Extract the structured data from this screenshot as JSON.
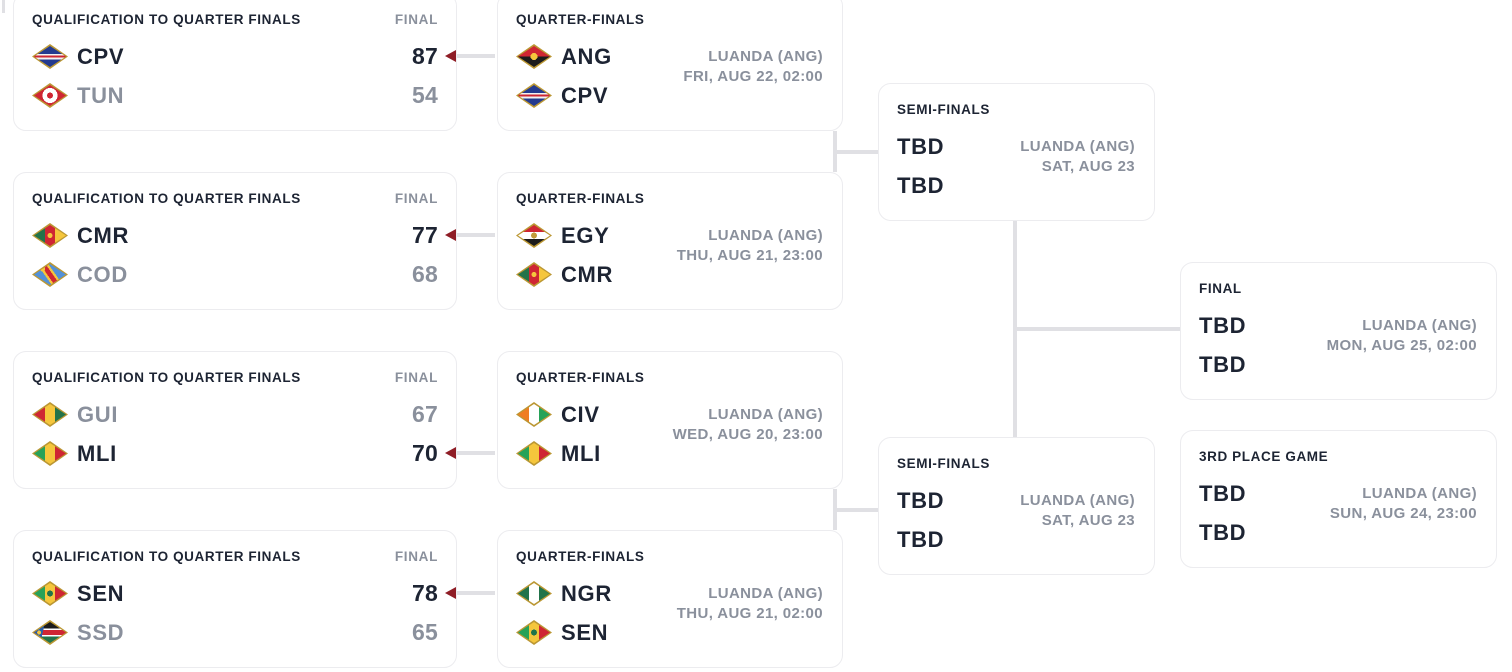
{
  "colors": {
    "text_dark": "#1d2433",
    "text_gray": "#8a909c",
    "winner_arrow": "#8f1d26",
    "connector_line": "#e0e0e4",
    "card_border": "#ececef"
  },
  "bracket": {
    "cards": [
      {
        "id": "q1",
        "round": "QUALIFICATION TO QUARTER FINALS",
        "status": "FINAL",
        "teams": [
          {
            "code": "CPV",
            "flag": "cpv-flag",
            "score": "87",
            "winner": true
          },
          {
            "code": "TUN",
            "flag": "tun-flag",
            "score": "54",
            "winner": false
          }
        ]
      },
      {
        "id": "q2",
        "round": "QUALIFICATION TO QUARTER FINALS",
        "status": "FINAL",
        "teams": [
          {
            "code": "CMR",
            "flag": "cmr-flag",
            "score": "77",
            "winner": true
          },
          {
            "code": "COD",
            "flag": "cod-flag",
            "score": "68",
            "winner": false
          }
        ]
      },
      {
        "id": "q3",
        "round": "QUALIFICATION TO QUARTER FINALS",
        "status": "FINAL",
        "teams": [
          {
            "code": "GUI",
            "flag": "gui-flag",
            "score": "67",
            "winner": false
          },
          {
            "code": "MLI",
            "flag": "mli-flag",
            "score": "70",
            "winner": true
          }
        ]
      },
      {
        "id": "q4",
        "round": "QUALIFICATION TO QUARTER FINALS",
        "status": "FINAL",
        "teams": [
          {
            "code": "SEN",
            "flag": "sen-flag",
            "score": "78",
            "winner": true
          },
          {
            "code": "SSD",
            "flag": "ssd-flag",
            "score": "65",
            "winner": false
          }
        ]
      },
      {
        "id": "qf1",
        "round": "QUARTER-FINALS",
        "venue": "LUANDA (ANG)",
        "datetime": "FRI, AUG 22, 02:00",
        "teams": [
          {
            "code": "ANG",
            "flag": "ang-flag"
          },
          {
            "code": "CPV",
            "flag": "cpv-flag"
          }
        ]
      },
      {
        "id": "qf2",
        "round": "QUARTER-FINALS",
        "venue": "LUANDA (ANG)",
        "datetime": "THU, AUG 21, 23:00",
        "teams": [
          {
            "code": "EGY",
            "flag": "egy-flag"
          },
          {
            "code": "CMR",
            "flag": "cmr-flag"
          }
        ]
      },
      {
        "id": "qf3",
        "round": "QUARTER-FINALS",
        "venue": "LUANDA (ANG)",
        "datetime": "WED, AUG 20, 23:00",
        "teams": [
          {
            "code": "CIV",
            "flag": "civ-flag"
          },
          {
            "code": "MLI",
            "flag": "mli-flag"
          }
        ]
      },
      {
        "id": "qf4",
        "round": "QUARTER-FINALS",
        "venue": "LUANDA (ANG)",
        "datetime": "THU, AUG 21, 02:00",
        "teams": [
          {
            "code": "NGR",
            "flag": "ngr-flag"
          },
          {
            "code": "SEN",
            "flag": "sen-flag"
          }
        ]
      },
      {
        "id": "sf1",
        "round": "SEMI-FINALS",
        "venue": "LUANDA (ANG)",
        "datetime": "SAT, AUG 23",
        "teams": [
          {
            "code": "TBD"
          },
          {
            "code": "TBD"
          }
        ]
      },
      {
        "id": "sf2",
        "round": "SEMI-FINALS",
        "venue": "LUANDA (ANG)",
        "datetime": "SAT, AUG 23",
        "teams": [
          {
            "code": "TBD"
          },
          {
            "code": "TBD"
          }
        ]
      },
      {
        "id": "f",
        "round": "FINAL",
        "venue": "LUANDA (ANG)",
        "datetime": "MON, AUG 25, 02:00",
        "teams": [
          {
            "code": "TBD"
          },
          {
            "code": "TBD"
          }
        ]
      },
      {
        "id": "p3",
        "round": "3RD PLACE GAME",
        "venue": "LUANDA (ANG)",
        "datetime": "SUN, AUG 24, 23:00",
        "teams": [
          {
            "code": "TBD"
          },
          {
            "code": "TBD"
          }
        ]
      }
    ]
  }
}
